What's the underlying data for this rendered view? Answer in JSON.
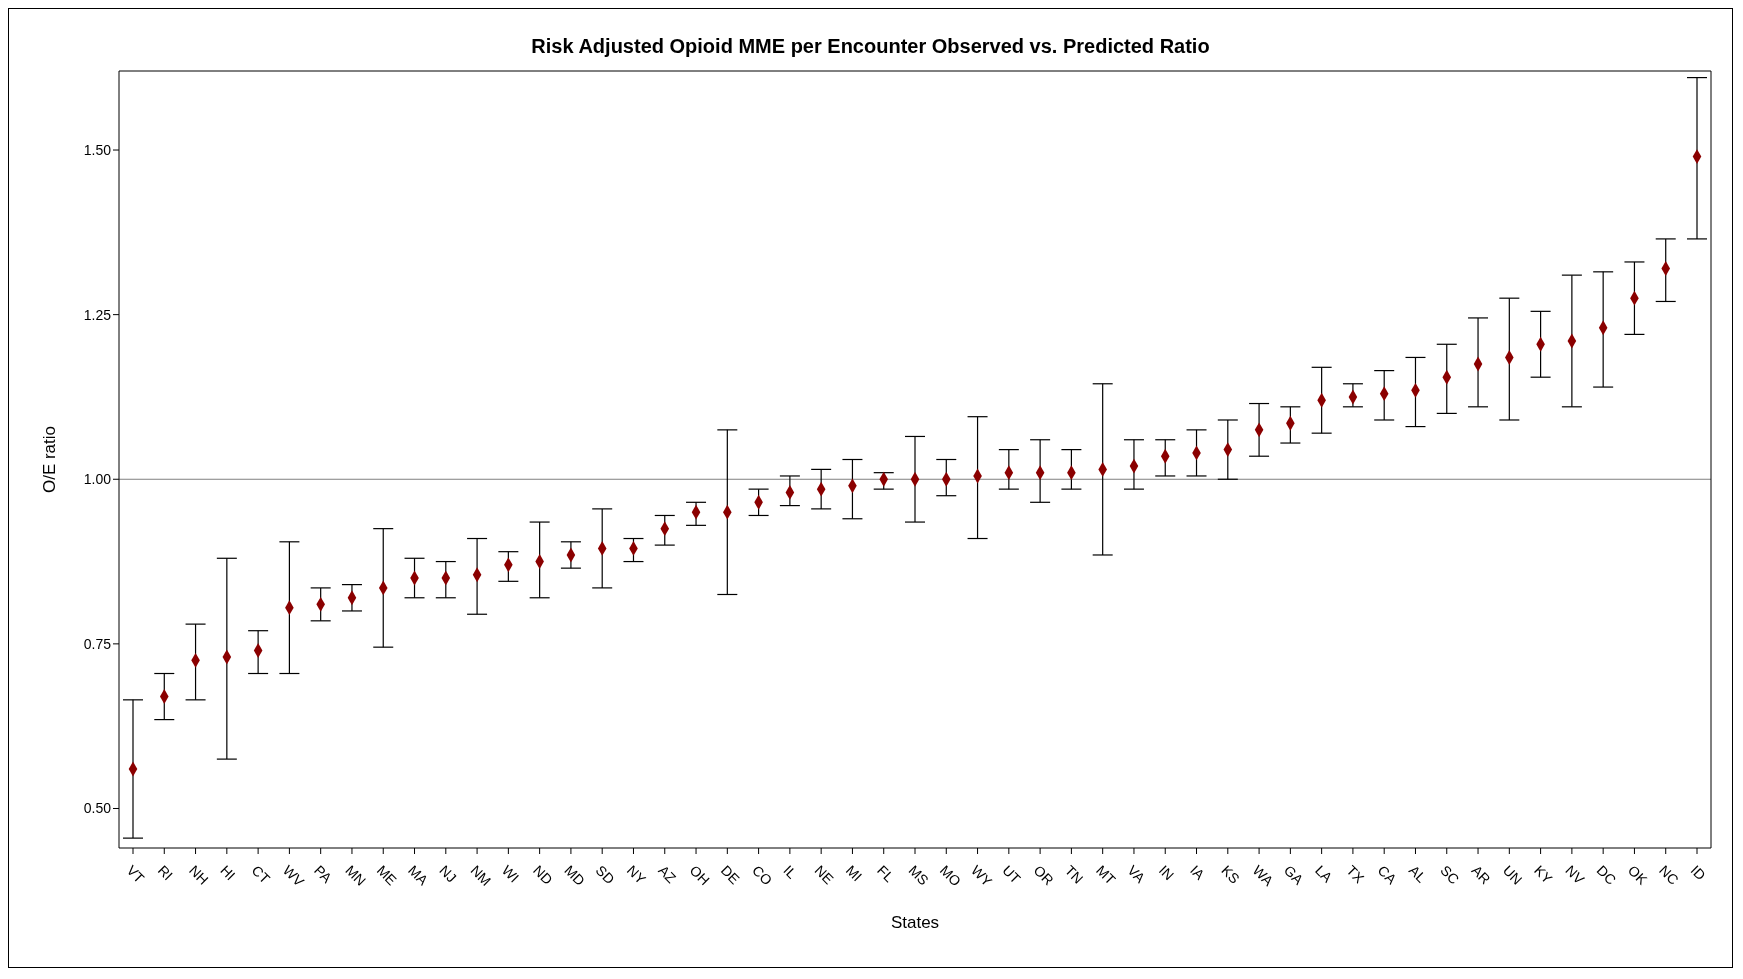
{
  "chart_data": {
    "type": "scatter",
    "title": "Risk Adjusted Opioid MME per Encounter Observed vs. Predicted Ratio",
    "xlabel": "States",
    "ylabel": "O/E ratio",
    "categories": [
      "VT",
      "RI",
      "NH",
      "HI",
      "CT",
      "WV",
      "PA",
      "MN",
      "ME",
      "MA",
      "NJ",
      "NM",
      "WI",
      "ND",
      "MD",
      "SD",
      "NY",
      "AZ",
      "OH",
      "DE",
      "CO",
      "IL",
      "NE",
      "MI",
      "FL",
      "MS",
      "MO",
      "WY",
      "UT",
      "OR",
      "TN",
      "MT",
      "VA",
      "IN",
      "IA",
      "KS",
      "WA",
      "GA",
      "LA",
      "TX",
      "CA",
      "AL",
      "SC",
      "AR",
      "UN",
      "KY",
      "NV",
      "DC",
      "OK",
      "NC",
      "ID"
    ],
    "series": [
      {
        "color": "#8b0000",
        "values": [
          0.56,
          0.67,
          0.725,
          0.73,
          0.74,
          0.805,
          0.81,
          0.82,
          0.835,
          0.85,
          0.85,
          0.855,
          0.87,
          0.875,
          0.885,
          0.895,
          0.895,
          0.925,
          0.95,
          0.95,
          0.965,
          0.98,
          0.985,
          0.99,
          1.0,
          1.0,
          1.0,
          1.005,
          1.01,
          1.01,
          1.01,
          1.015,
          1.02,
          1.035,
          1.04,
          1.045,
          1.075,
          1.085,
          1.12,
          1.125,
          1.13,
          1.135,
          1.155,
          1.175,
          1.185,
          1.205,
          1.21,
          1.23,
          1.275,
          1.32,
          1.49
        ],
        "errors": [
          [
            0.455,
            0.665
          ],
          [
            0.635,
            0.705
          ],
          [
            0.665,
            0.78
          ],
          [
            0.575,
            0.88
          ],
          [
            0.705,
            0.77
          ],
          [
            0.705,
            0.905
          ],
          [
            0.785,
            0.835
          ],
          [
            0.8,
            0.84
          ],
          [
            0.745,
            0.925
          ],
          [
            0.82,
            0.88
          ],
          [
            0.82,
            0.875
          ],
          [
            0.795,
            0.91
          ],
          [
            0.845,
            0.89
          ],
          [
            0.82,
            0.935
          ],
          [
            0.865,
            0.905
          ],
          [
            0.835,
            0.955
          ],
          [
            0.875,
            0.91
          ],
          [
            0.9,
            0.945
          ],
          [
            0.93,
            0.965
          ],
          [
            0.825,
            1.075
          ],
          [
            0.945,
            0.985
          ],
          [
            0.96,
            1.005
          ],
          [
            0.955,
            1.015
          ],
          [
            0.94,
            1.03
          ],
          [
            0.985,
            1.01
          ],
          [
            0.935,
            1.065
          ],
          [
            0.975,
            1.03
          ],
          [
            0.91,
            1.095
          ],
          [
            0.985,
            1.045
          ],
          [
            0.965,
            1.06
          ],
          [
            0.985,
            1.045
          ],
          [
            0.885,
            1.145
          ],
          [
            0.985,
            1.06
          ],
          [
            1.005,
            1.06
          ],
          [
            1.005,
            1.075
          ],
          [
            1.0,
            1.09
          ],
          [
            1.035,
            1.115
          ],
          [
            1.055,
            1.11
          ],
          [
            1.07,
            1.17
          ],
          [
            1.11,
            1.145
          ],
          [
            1.09,
            1.165
          ],
          [
            1.08,
            1.185
          ],
          [
            1.1,
            1.205
          ],
          [
            1.11,
            1.245
          ],
          [
            1.09,
            1.275
          ],
          [
            1.155,
            1.255
          ],
          [
            1.11,
            1.31
          ],
          [
            1.14,
            1.315
          ],
          [
            1.22,
            1.33
          ],
          [
            1.27,
            1.365
          ],
          [
            1.365,
            1.61
          ]
        ]
      }
    ],
    "ylim": [
      0.44,
      1.62
    ],
    "yticks": [
      {
        "value": 0.5,
        "label": "0.50"
      },
      {
        "value": 0.75,
        "label": "0.75"
      },
      {
        "value": 1.0,
        "label": "1.00"
      },
      {
        "value": 1.25,
        "label": "1.25"
      },
      {
        "value": 1.5,
        "label": "1.50"
      }
    ],
    "ref_lines": [
      {
        "axis": "y",
        "value": 1.0,
        "color": "#808080"
      }
    ],
    "marker": "diamond",
    "grid": false
  }
}
